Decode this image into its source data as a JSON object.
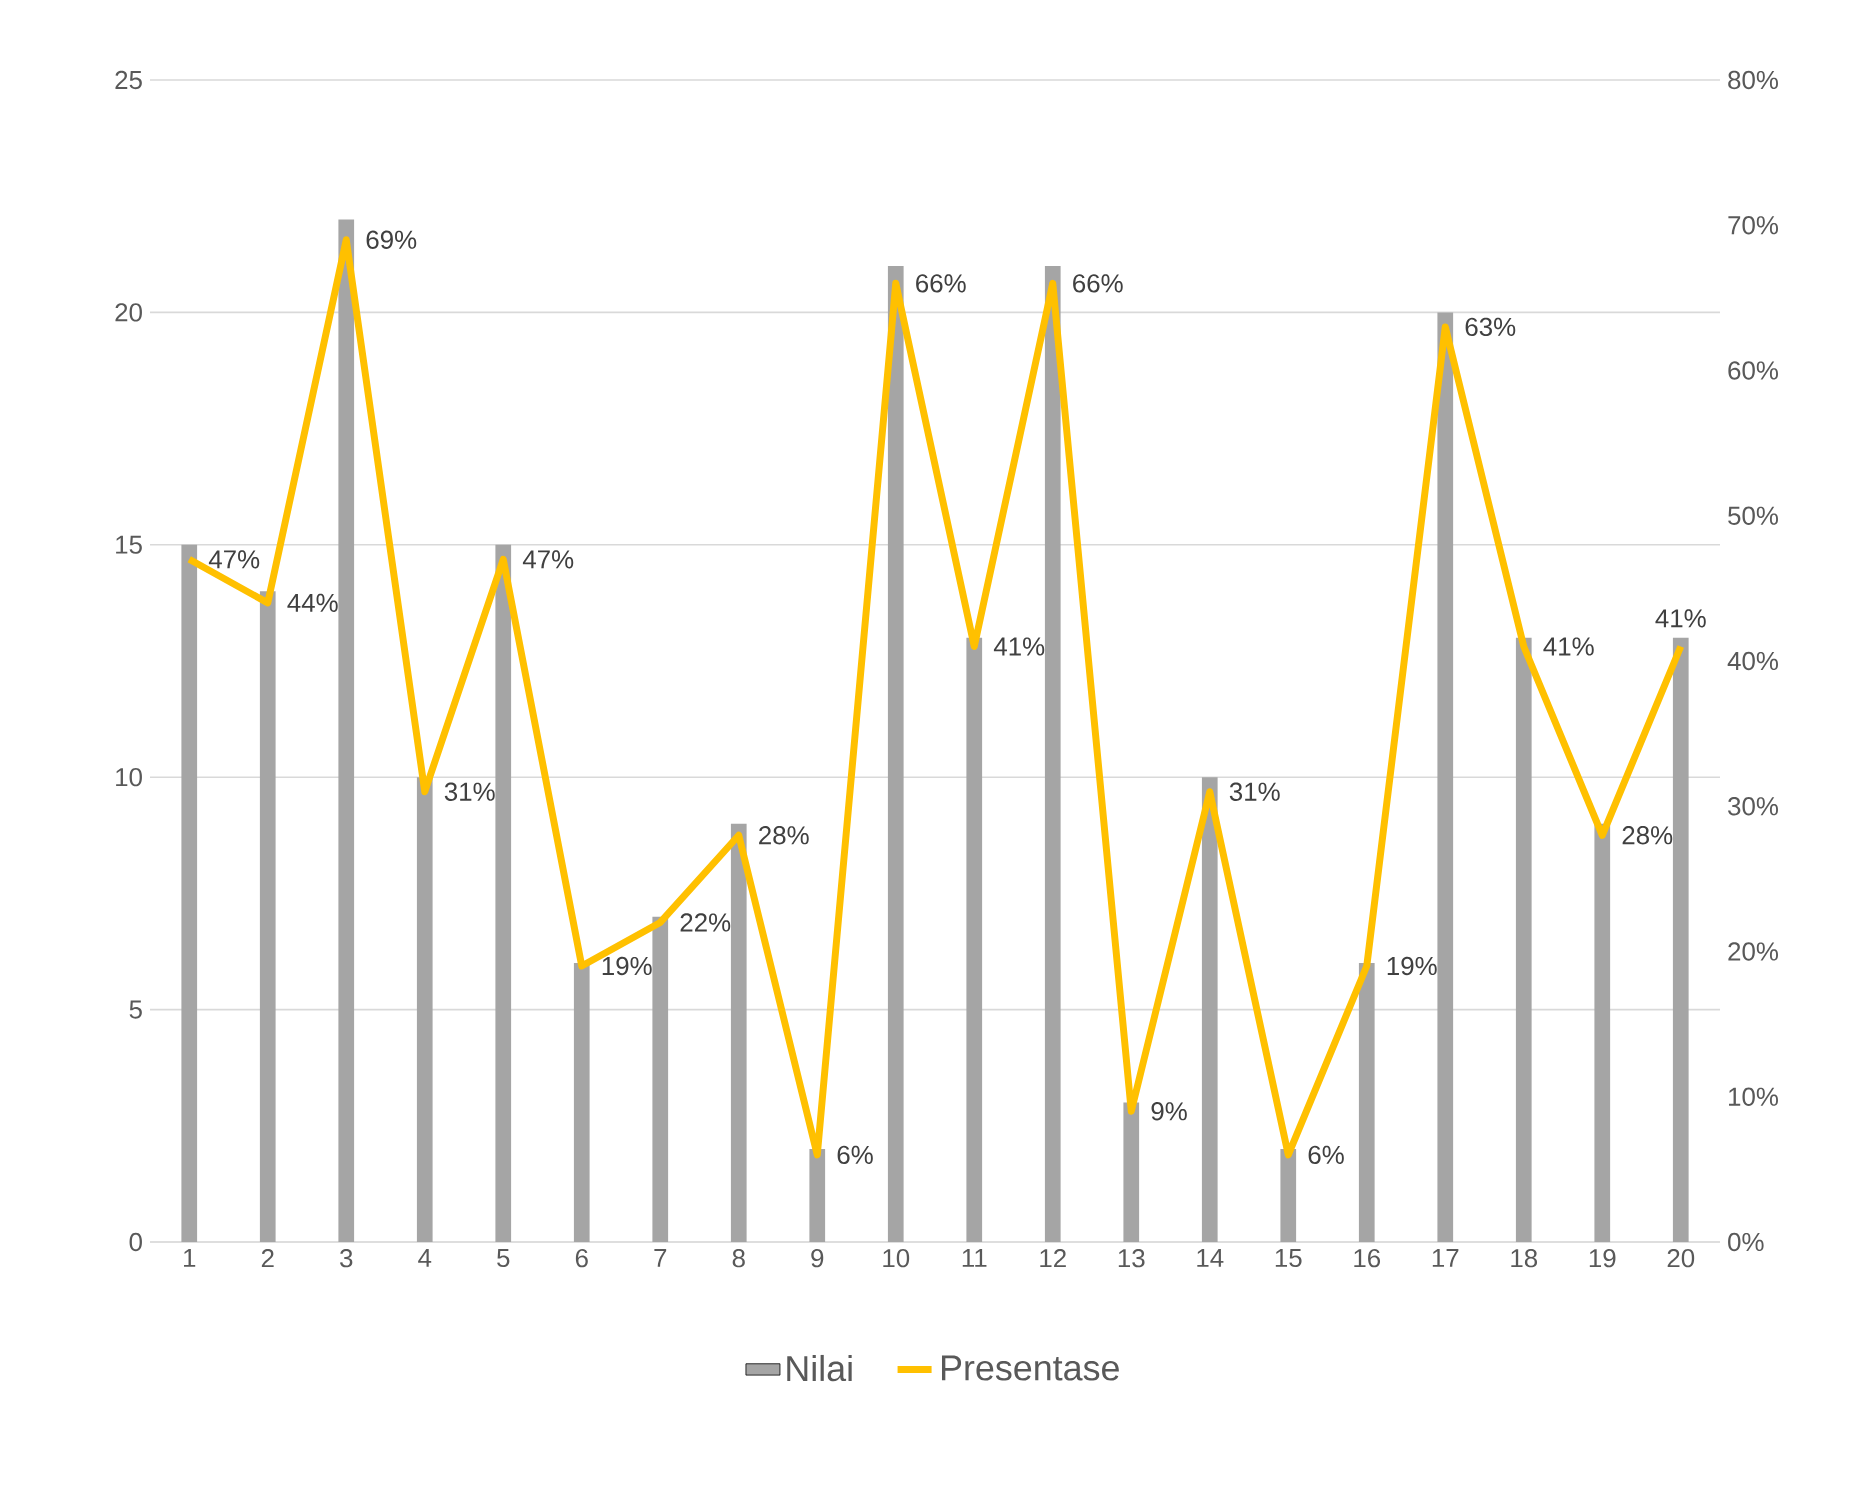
{
  "chart_data": {
    "type": "bar",
    "categories": [
      "1",
      "2",
      "3",
      "4",
      "5",
      "6",
      "7",
      "8",
      "9",
      "10",
      "11",
      "12",
      "13",
      "14",
      "15",
      "16",
      "17",
      "18",
      "19",
      "20"
    ],
    "series": [
      {
        "name": "Nilai",
        "color": "#a5a5a5",
        "values": [
          15,
          14,
          22,
          10,
          15,
          6,
          7,
          9,
          2,
          21,
          13,
          21,
          3,
          10,
          2,
          6,
          20,
          13,
          9,
          13
        ]
      },
      {
        "name": "Presentase",
        "type": "line",
        "axis": "y2",
        "color": "#ffc000",
        "values": [
          47,
          44,
          69,
          31,
          47,
          19,
          22,
          28,
          6,
          66,
          41,
          66,
          9,
          31,
          6,
          19,
          63,
          41,
          28,
          41
        ],
        "value_labels": [
          "47%",
          "44%",
          "69%",
          "31%",
          "47%",
          "19%",
          "22%",
          "28%",
          "6%",
          "66%",
          "41%",
          "66%",
          "9%",
          "31%",
          "6%",
          "19%",
          "63%",
          "41%",
          "28%",
          "41%"
        ]
      }
    ],
    "ylim": [
      0,
      25
    ],
    "yticks": [
      0,
      5,
      10,
      15,
      20,
      25
    ],
    "y2lim": [
      0,
      80
    ],
    "y2ticks": [
      {
        "value": 0,
        "label": "0%"
      },
      {
        "value": 10,
        "label": "10%"
      },
      {
        "value": 20,
        "label": "20%"
      },
      {
        "value": 30,
        "label": "30%"
      },
      {
        "value": 40,
        "label": "40%"
      },
      {
        "value": 50,
        "label": "50%"
      },
      {
        "value": 60,
        "label": "60%"
      },
      {
        "value": 70,
        "label": "70%"
      },
      {
        "value": 80,
        "label": "80%"
      }
    ],
    "grid": "y",
    "legend": "bottom"
  }
}
